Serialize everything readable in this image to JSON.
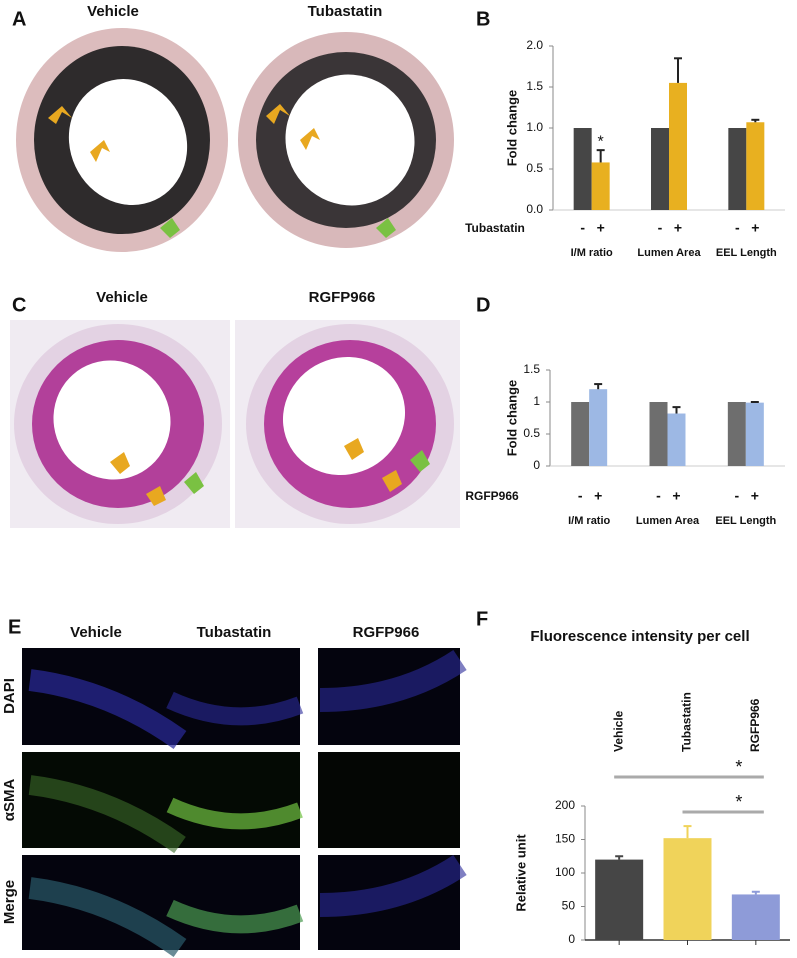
{
  "panels": {
    "labels": [
      "A",
      "B",
      "C",
      "D",
      "E",
      "F"
    ]
  },
  "panel_a": {
    "columns": [
      "Vehicle",
      "Tubastatin"
    ]
  },
  "panel_c": {
    "columns": [
      "Vehicle",
      "RGFP966"
    ]
  },
  "panel_e": {
    "columns": [
      "Vehicle",
      "Tubastatin",
      "RGFP966"
    ],
    "rows": [
      "DAPI",
      "αSMA",
      "Merge"
    ]
  },
  "chart_data": [
    {
      "type": "bar",
      "ylabel": "Fold change",
      "treatment_label": "Tubastatin",
      "categories": [
        "I/M ratio",
        "Lumen Area",
        "EEL Length"
      ],
      "series": [
        {
          "name": "-",
          "color": "#464646",
          "values": [
            1,
            1,
            1
          ]
        },
        {
          "name": "+",
          "color": "#e8b020",
          "values": [
            0.58,
            1.55,
            1.07
          ],
          "errors": [
            0.15,
            0.3,
            0.03
          ]
        }
      ],
      "significance": [
        "*",
        null,
        null
      ],
      "ylim": [
        0,
        2
      ],
      "yticks": [
        {
          "value": 0,
          "label": "0.0"
        },
        0.5,
        {
          "value": 1,
          "label": "1.0"
        },
        1.5,
        {
          "value": 2,
          "label": "2.0"
        }
      ]
    },
    {
      "type": "bar",
      "ylabel": "Fold change",
      "treatment_label": "RGFP966",
      "categories": [
        "I/M ratio",
        "Lumen Area",
        "EEL Length"
      ],
      "series": [
        {
          "name": "-",
          "color": "#6e6e6e",
          "values": [
            1,
            1,
            1
          ]
        },
        {
          "name": "+",
          "color": "#9db8e4",
          "values": [
            1.2,
            0.82,
            0.99
          ],
          "errors": [
            0.08,
            0.1,
            0.01
          ]
        }
      ],
      "ylim": [
        0,
        1.5
      ],
      "yticks": [
        0,
        0.5,
        1,
        1.5
      ]
    },
    {
      "type": "bar",
      "title": "Fluorescence intensity per cell",
      "ylabel": "Relative unit",
      "categories": [
        "Vehicle",
        "Tubastatin",
        "RGFP966"
      ],
      "values": [
        120,
        152,
        68
      ],
      "errors": [
        5,
        18,
        4
      ],
      "colors": [
        "#464646",
        "#f0d35a",
        "#8e9bd8"
      ],
      "comparisons": [
        {
          "from": 0,
          "to": 2,
          "label": "*"
        },
        {
          "from": 1,
          "to": 2,
          "label": "*"
        }
      ],
      "ylim": [
        0,
        200
      ],
      "yticks": [
        0,
        50,
        100,
        150,
        200
      ]
    }
  ]
}
